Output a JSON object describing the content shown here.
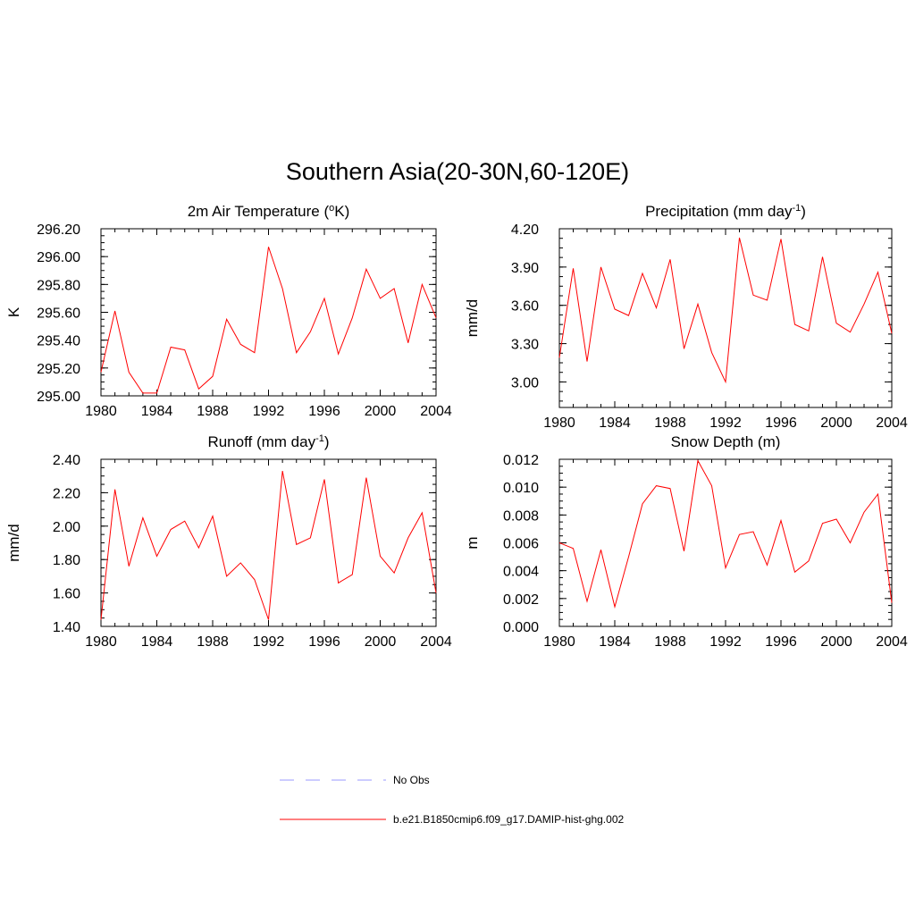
{
  "figure": {
    "title": "Southern Asia(20-30N,60-120E)"
  },
  "legend": {
    "items": [
      {
        "label": "No Obs",
        "color": "#9999ff",
        "dash": true
      },
      {
        "label": "b.e21.B1850cmip6.f09_g17.DAMIP-hist-ghg.002",
        "color": "#ff0000",
        "dash": false
      }
    ]
  },
  "chart_data": [
    {
      "type": "line",
      "title": "2m Air Temperature (",
      "title_sup": "o",
      "title_after": "K)",
      "ylabel": "K",
      "xlim": [
        1980,
        2004
      ],
      "xticks": [
        1980,
        1984,
        1988,
        1992,
        1996,
        2000,
        2004
      ],
      "ylim": [
        295.0,
        296.2
      ],
      "yticks": [
        "295.00",
        "295.20",
        "295.40",
        "295.60",
        "295.80",
        "296.00",
        "296.20"
      ],
      "x": [
        1980,
        1981,
        1982,
        1983,
        1984,
        1985,
        1986,
        1987,
        1988,
        1989,
        1990,
        1991,
        1992,
        1993,
        1994,
        1995,
        1996,
        1997,
        1998,
        1999,
        2000,
        2001,
        2002,
        2003,
        2004
      ],
      "series": [
        {
          "color": "#ff0000",
          "values": [
            295.17,
            295.61,
            295.17,
            295.02,
            295.02,
            295.35,
            295.33,
            295.05,
            295.14,
            295.55,
            295.37,
            295.31,
            296.07,
            295.77,
            295.31,
            295.46,
            295.7,
            295.3,
            295.56,
            295.91,
            295.7,
            295.77,
            295.38,
            295.8,
            295.56
          ]
        }
      ]
    },
    {
      "type": "line",
      "title": "Precipitation (mm day",
      "title_sup": "-1",
      "title_after": ")",
      "ylabel": "mm/d",
      "xlim": [
        1980,
        2004
      ],
      "xticks": [
        1980,
        1984,
        1988,
        1992,
        1996,
        2000,
        2004
      ],
      "ylim": [
        2.8,
        4.2
      ],
      "yticks": [
        "3.00",
        "3.30",
        "3.60",
        "3.90",
        "4.20"
      ],
      "x": [
        1980,
        1981,
        1982,
        1983,
        1984,
        1985,
        1986,
        1987,
        1988,
        1989,
        1990,
        1991,
        1992,
        1993,
        1994,
        1995,
        1996,
        1997,
        1998,
        1999,
        2000,
        2001,
        2002,
        2003,
        2004
      ],
      "series": [
        {
          "color": "#ff0000",
          "values": [
            3.19,
            3.89,
            3.16,
            3.9,
            3.57,
            3.52,
            3.85,
            3.58,
            3.96,
            3.26,
            3.61,
            3.23,
            3.0,
            4.13,
            3.68,
            3.64,
            4.12,
            3.45,
            3.4,
            3.98,
            3.46,
            3.39,
            3.61,
            3.86,
            3.38
          ]
        }
      ]
    },
    {
      "type": "line",
      "title": "Runoff (mm day",
      "title_sup": "-1",
      "title_after": ")",
      "ylabel": "mm/d",
      "xlim": [
        1980,
        2004
      ],
      "xticks": [
        1980,
        1984,
        1988,
        1992,
        1996,
        2000,
        2004
      ],
      "ylim": [
        1.4,
        2.4
      ],
      "yticks": [
        "1.40",
        "1.60",
        "1.80",
        "2.00",
        "2.20",
        "2.40"
      ],
      "x": [
        1980,
        1981,
        1982,
        1983,
        1984,
        1985,
        1986,
        1987,
        1988,
        1989,
        1990,
        1991,
        1992,
        1993,
        1994,
        1995,
        1996,
        1997,
        1998,
        1999,
        2000,
        2001,
        2002,
        2003,
        2004
      ],
      "series": [
        {
          "color": "#ff0000",
          "values": [
            1.44,
            2.22,
            1.76,
            2.05,
            1.82,
            1.98,
            2.03,
            1.87,
            2.06,
            1.7,
            1.78,
            1.68,
            1.44,
            2.33,
            1.89,
            1.93,
            2.28,
            1.66,
            1.71,
            2.29,
            1.82,
            1.72,
            1.93,
            2.08,
            1.6
          ]
        }
      ]
    },
    {
      "type": "line",
      "title": "Snow Depth (m)",
      "title_sup": "",
      "title_after": "",
      "ylabel": "m",
      "xlim": [
        1980,
        2004
      ],
      "xticks": [
        1980,
        1984,
        1988,
        1992,
        1996,
        2000,
        2004
      ],
      "ylim": [
        0.0,
        0.012
      ],
      "yticks": [
        "0.000",
        "0.002",
        "0.004",
        "0.006",
        "0.008",
        "0.010",
        "0.012"
      ],
      "x": [
        1980,
        1981,
        1982,
        1983,
        1984,
        1985,
        1986,
        1987,
        1988,
        1989,
        1990,
        1991,
        1992,
        1993,
        1994,
        1995,
        1996,
        1997,
        1998,
        1999,
        2000,
        2001,
        2002,
        2003,
        2004
      ],
      "series": [
        {
          "color": "#ff0000",
          "values": [
            0.006,
            0.0056,
            0.0018,
            0.0055,
            0.0014,
            0.005,
            0.0088,
            0.0101,
            0.0099,
            0.0054,
            0.0119,
            0.0101,
            0.0042,
            0.0066,
            0.0068,
            0.0044,
            0.0076,
            0.0039,
            0.0047,
            0.0074,
            0.0077,
            0.006,
            0.0082,
            0.0095,
            0.0017
          ]
        }
      ]
    }
  ]
}
